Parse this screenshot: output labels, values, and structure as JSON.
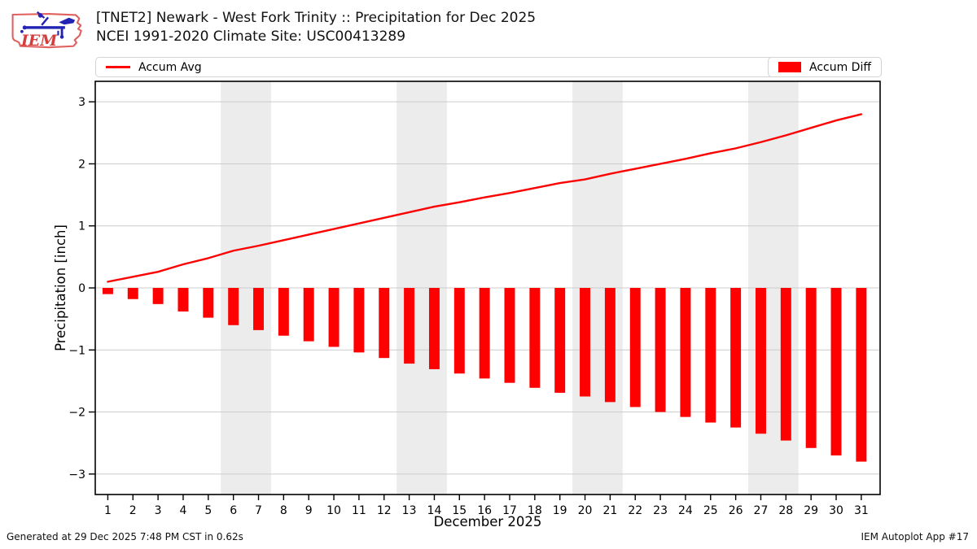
{
  "header": {
    "title_line1": "[TNET2] Newark - West Fork Trinity :: Precipitation for Dec 2025",
    "title_line2": "NCEI 1991-2020 Climate Site: USC00413289",
    "logo_text": "IEM"
  },
  "legend": {
    "avg_label": "Accum Avg",
    "diff_label": "Accum Diff",
    "avg_color": "#ff0000",
    "diff_color": "#ff0000"
  },
  "footer": {
    "generated": "Generated at 29 Dec 2025 7:48 PM CST in 0.62s",
    "app": "IEM Autoplot App #17"
  },
  "chart_data": {
    "type": "bar",
    "title": "[TNET2] Newark - West Fork Trinity :: Precipitation for Dec 2025",
    "subtitle": "NCEI 1991-2020 Climate Site: USC00413289",
    "xlabel": "December 2025",
    "ylabel": "Precipitation [inch]",
    "x": [
      1,
      2,
      3,
      4,
      5,
      6,
      7,
      8,
      9,
      10,
      11,
      12,
      13,
      14,
      15,
      16,
      17,
      18,
      19,
      20,
      21,
      22,
      23,
      24,
      25,
      26,
      27,
      28,
      29,
      30,
      31
    ],
    "series": [
      {
        "name": "Accum Avg",
        "type": "line",
        "color": "#ff0000",
        "values": [
          0.1,
          0.18,
          0.26,
          0.38,
          0.48,
          0.6,
          0.68,
          0.77,
          0.86,
          0.95,
          1.04,
          1.13,
          1.22,
          1.31,
          1.38,
          1.46,
          1.53,
          1.61,
          1.69,
          1.75,
          1.84,
          1.92,
          2.0,
          2.08,
          2.17,
          2.25,
          2.35,
          2.46,
          2.58,
          2.7,
          2.8
        ]
      },
      {
        "name": "Accum Diff",
        "type": "bar",
        "color": "#ff0000",
        "values": [
          -0.1,
          -0.18,
          -0.26,
          -0.38,
          -0.48,
          -0.6,
          -0.68,
          -0.77,
          -0.86,
          -0.95,
          -1.04,
          -1.13,
          -1.22,
          -1.31,
          -1.38,
          -1.46,
          -1.53,
          -1.61,
          -1.69,
          -1.75,
          -1.84,
          -1.92,
          -2.0,
          -2.08,
          -2.17,
          -2.25,
          -2.35,
          -2.46,
          -2.58,
          -2.7,
          -2.8
        ]
      }
    ],
    "ylim": [
      -3.33,
      3.33
    ],
    "xlim": [
      0.5,
      31.75
    ],
    "yticks": [
      3,
      2,
      1,
      0,
      -1,
      -2,
      -3
    ],
    "ytick_labels": [
      "3",
      "2",
      "1",
      "0",
      "−1",
      "−2",
      "−3"
    ],
    "grid": true,
    "legend_position": "top",
    "weekend_bands": [
      [
        5.5,
        7.5
      ],
      [
        12.5,
        14.5
      ],
      [
        19.5,
        21.5
      ],
      [
        26.5,
        28.5
      ]
    ],
    "band_color": "#ececec",
    "grid_color": "#cccccc",
    "frame_color": "#000000",
    "bar_width_days": 0.42
  }
}
